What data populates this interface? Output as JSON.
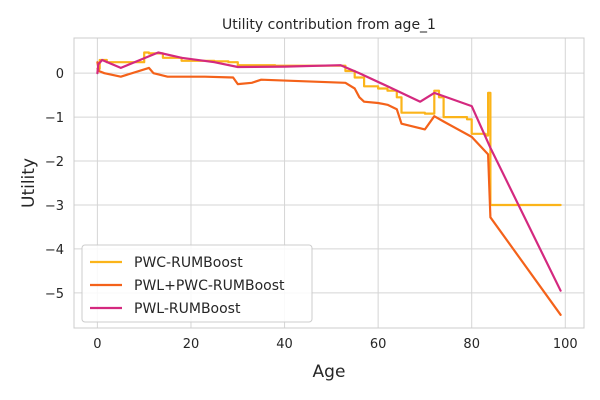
{
  "chart_data": {
    "type": "line",
    "title": "Utility contribution from age_1",
    "xlabel": "Age",
    "ylabel": "Utility",
    "xlim": [
      -5,
      104
    ],
    "ylim": [
      -5.8,
      0.8
    ],
    "xticks": [
      0,
      20,
      40,
      60,
      80,
      100
    ],
    "xtick_labels": [
      "0",
      "20",
      "40",
      "60",
      "80",
      "100"
    ],
    "yticks": [
      0,
      -1,
      -2,
      -3,
      -4,
      -5
    ],
    "ytick_labels": [
      "0",
      "−1",
      "−2",
      "−3",
      "−4",
      "−5"
    ],
    "grid": true,
    "legend_position": "lower-left",
    "series": [
      {
        "name": "PWC-RUMBoost",
        "color": "#fbb41a",
        "step": true,
        "x": [
          0,
          0.5,
          2,
          10,
          11,
          14,
          18,
          25,
          28,
          30,
          38,
          50,
          53,
          55,
          57,
          60,
          62,
          64,
          65,
          70,
          72,
          73,
          74,
          79,
          80,
          83,
          83.5,
          84,
          99
        ],
        "y": [
          0.1,
          0.3,
          0.25,
          0.47,
          0.45,
          0.35,
          0.28,
          0.27,
          0.25,
          0.18,
          0.17,
          0.17,
          0.05,
          -0.1,
          -0.3,
          -0.35,
          -0.4,
          -0.55,
          -0.9,
          -0.92,
          -0.4,
          -0.55,
          -1.0,
          -1.05,
          -1.38,
          -1.42,
          -0.45,
          -3.0,
          -3.0
        ]
      },
      {
        "name": "PWL+PWC-RUMBoost",
        "color": "#f4621a",
        "step": false,
        "x": [
          0,
          0.3,
          1.5,
          5,
          11,
          12,
          15,
          19,
          23,
          29,
          30,
          33,
          35,
          53,
          55,
          56,
          57,
          60,
          62,
          64,
          65,
          70,
          72,
          74,
          80,
          83.5,
          84,
          99
        ],
        "y": [
          0.25,
          0.05,
          0.0,
          -0.08,
          0.12,
          0.0,
          -0.08,
          -0.08,
          -0.08,
          -0.1,
          -0.25,
          -0.22,
          -0.15,
          -0.22,
          -0.35,
          -0.55,
          -0.65,
          -0.68,
          -0.72,
          -0.82,
          -1.15,
          -1.28,
          -0.98,
          -1.1,
          -1.45,
          -1.85,
          -3.28,
          -5.5
        ]
      },
      {
        "name": "PWL-RUMBoost",
        "color": "#d4297f",
        "step": false,
        "x": [
          0,
          0.2,
          1,
          5,
          13,
          18,
          25,
          30,
          40,
          52,
          56,
          62,
          66,
          69,
          72,
          80,
          84,
          99
        ],
        "y": [
          0.0,
          0.2,
          0.3,
          0.12,
          0.47,
          0.35,
          0.25,
          0.14,
          0.15,
          0.18,
          0.0,
          -0.3,
          -0.5,
          -0.65,
          -0.45,
          -0.75,
          -1.7,
          -4.95
        ]
      }
    ]
  }
}
